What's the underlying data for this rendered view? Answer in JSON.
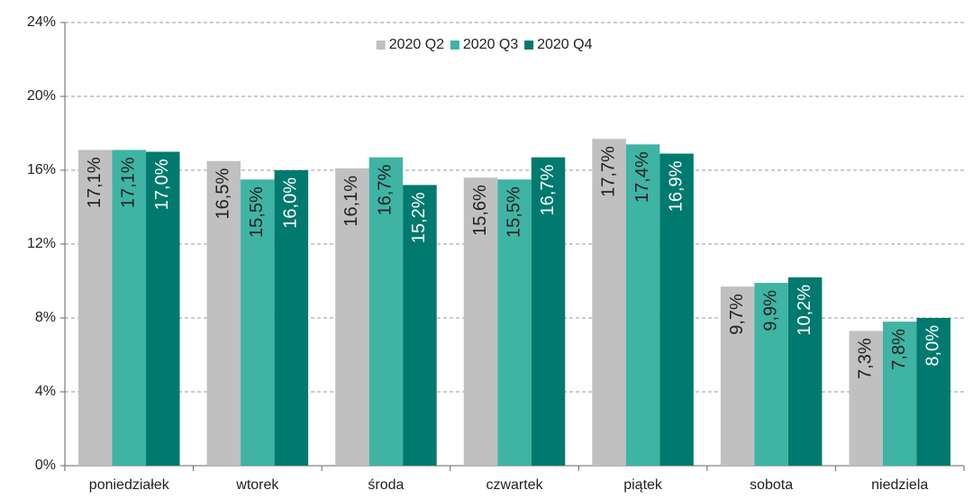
{
  "chart_data": {
    "type": "bar",
    "categories": [
      "poniedziałek",
      "wtorek",
      "środa",
      "czwartek",
      "piątek",
      "sobota",
      "niedziela"
    ],
    "series": [
      {
        "name": "2020 Q2",
        "color": "#c0c0c0",
        "values": [
          17.1,
          16.5,
          16.1,
          15.6,
          17.7,
          9.7,
          7.3
        ],
        "value_labels": [
          "17,1%",
          "16,5%",
          "16,1%",
          "15,6%",
          "17,7%",
          "9,7%",
          "7,3%"
        ]
      },
      {
        "name": "2020 Q3",
        "color": "#3fb4a4",
        "values": [
          17.1,
          15.5,
          16.7,
          15.5,
          17.4,
          9.9,
          7.8
        ],
        "value_labels": [
          "17,1%",
          "15,5%",
          "16,7%",
          "15,5%",
          "17,4%",
          "9,9%",
          "7,8%"
        ]
      },
      {
        "name": "2020 Q4",
        "color": "#007a6e",
        "values": [
          17.0,
          16.0,
          15.2,
          16.7,
          16.9,
          10.2,
          8.0
        ],
        "value_labels": [
          "17,0%",
          "16,0%",
          "15,2%",
          "16,7%",
          "16,9%",
          "10,2%",
          "8,0%"
        ]
      }
    ],
    "ylim": [
      0,
      24
    ],
    "yticks": [
      {
        "value": 0,
        "label": "0%"
      },
      {
        "value": 4,
        "label": "4%"
      },
      {
        "value": 8,
        "label": "8%"
      },
      {
        "value": 12,
        "label": "12%"
      },
      {
        "value": 16,
        "label": "16%"
      },
      {
        "value": 20,
        "label": "20%"
      },
      {
        "value": 24,
        "label": "24%"
      }
    ],
    "grid": true,
    "legend": "top"
  }
}
